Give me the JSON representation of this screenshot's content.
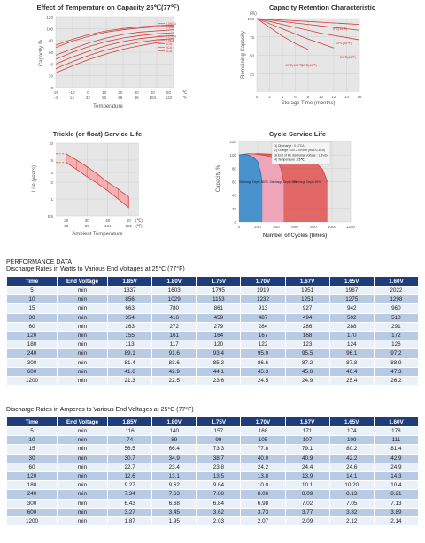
{
  "charts": {
    "temp": {
      "title": "Effect of Temperature on Capacity  25℃(77℉)",
      "ylabel": "Capacity %",
      "xlabel": "Temperature",
      "c_ticks": [
        "-20",
        "-10",
        "0",
        "10",
        "20",
        "30",
        "40",
        "50",
        "℃"
      ],
      "f_ticks": [
        "-4",
        "14",
        "32",
        "50",
        "68",
        "86",
        "104",
        "122",
        "℉"
      ],
      "y_ticks": [
        "120",
        "100",
        "80",
        "60",
        "40",
        "20",
        "0"
      ],
      "legend": [
        "0.05CA",
        "0.1CA",
        "0.25CA",
        "0.6CA",
        "1CA",
        "2CA",
        "3CA"
      ]
    },
    "retention": {
      "title": "Capacity Retention Characteristic",
      "unit": "(%)",
      "ylabel": "Remaining Capacity",
      "xlabel": "Storage Time (months)",
      "y_ticks": [
        "100",
        "75",
        "50",
        "25"
      ],
      "x_ticks": [
        "0",
        "2",
        "4",
        "6",
        "8",
        "10",
        "12",
        "14",
        "16"
      ],
      "labels": [
        "0℃(32℉)",
        "10℃(50℉)",
        "20℃(68℉)",
        "30℃(86℉)",
        "40℃(104℉)"
      ]
    },
    "trickle": {
      "title": "Trickle (or float) Service Life",
      "ylabel": "Life (years)",
      "xlabel": "Ambient Temperature",
      "y_ticks": [
        "10",
        "5",
        "3",
        "2",
        "1",
        "0.5"
      ],
      "c_ticks": [
        "20",
        "30",
        "40",
        "50",
        "(℃)"
      ],
      "f_ticks": [
        "68",
        "86",
        "104",
        "122",
        "(℉)"
      ]
    },
    "cycle": {
      "title": "Cycle Service Life",
      "ylabel": "Capacity %",
      "xlabel": "Number of Cycles (times)",
      "y_ticks": [
        "120",
        "100",
        "80",
        "60",
        "40",
        "20",
        "0"
      ],
      "x_ticks": [
        "0",
        "200",
        "400",
        "600",
        "800",
        "1000",
        "1200"
      ],
      "notes": [
        "(1) Discharge : 0.17CA",
        "(2) Charge : 1V/ 2.4V/cell (max 0.3CA)",
        "(3) End of life discharge voltage : 1.8V/pc",
        "(4) Temperature : 25℃"
      ],
      "curve_labels": [
        "Discharge Depth 100%",
        "Discharge Depth 50%",
        "Discharge Depth 30%"
      ]
    }
  },
  "chart_data": [
    {
      "type": "line",
      "title": "Effect of Temperature on Capacity  25℃(77℉)",
      "xlabel": "Temperature",
      "ylabel": "Capacity %",
      "x": [
        -20,
        -10,
        0,
        10,
        20,
        30,
        40,
        50
      ],
      "xlim": [
        -20,
        50
      ],
      "ylim": [
        0,
        120
      ],
      "series": [
        {
          "name": "0.05CA",
          "values": [
            72,
            82,
            90,
            96,
            100,
            103,
            105,
            106
          ]
        },
        {
          "name": "0.1CA",
          "values": [
            68,
            79,
            87,
            94,
            98,
            101,
            103,
            104
          ]
        },
        {
          "name": "0.25CA",
          "values": [
            55,
            66,
            76,
            84,
            90,
            94,
            96,
            98
          ]
        },
        {
          "name": "0.6CA",
          "values": [
            48,
            60,
            70,
            78,
            84,
            88,
            91,
            93
          ]
        },
        {
          "name": "1CA",
          "values": [
            40,
            52,
            62,
            71,
            78,
            83,
            86,
            88
          ]
        },
        {
          "name": "2CA",
          "values": [
            32,
            44,
            55,
            64,
            71,
            77,
            81,
            83
          ]
        },
        {
          "name": "3CA",
          "values": [
            25,
            37,
            48,
            57,
            65,
            71,
            76,
            78
          ]
        }
      ]
    },
    {
      "type": "line",
      "title": "Capacity Retention Characteristic",
      "xlabel": "Storage Time (months)",
      "ylabel": "Remaining Capacity",
      "x": [
        0,
        2,
        4,
        6,
        8,
        10,
        12,
        14,
        16
      ],
      "xlim": [
        0,
        16
      ],
      "ylim": [
        0,
        100
      ],
      "series": [
        {
          "name": "0℃(32℉)",
          "values": [
            100,
            99,
            98,
            97,
            96,
            95,
            94,
            93,
            92
          ]
        },
        {
          "name": "10℃(50℉)",
          "values": [
            100,
            98,
            96,
            94,
            92,
            90,
            88,
            86,
            84
          ]
        },
        {
          "name": "20℃(68℉)",
          "values": [
            100,
            96,
            92,
            88,
            84,
            80,
            77,
            74,
            71
          ]
        },
        {
          "name": "30℃(86℉)",
          "values": [
            100,
            93,
            86,
            79,
            72,
            66,
            60,
            null,
            null
          ]
        },
        {
          "name": "40℃(104℉)",
          "values": [
            100,
            88,
            76,
            66,
            58,
            null,
            null,
            null,
            null
          ]
        }
      ]
    },
    {
      "type": "area",
      "title": "Trickle (or float) Service Life",
      "xlabel": "Ambient Temperature",
      "ylabel": "Life (years)",
      "x": [
        20,
        25,
        30,
        35,
        40,
        45,
        50
      ],
      "upper": [
        6.5,
        5.0,
        3.8,
        2.8,
        2.0,
        1.5,
        1.1
      ],
      "lower": [
        4.5,
        3.4,
        2.5,
        1.9,
        1.4,
        1.0,
        0.7
      ],
      "xlim": [
        15,
        55
      ],
      "ylim": [
        0.5,
        10
      ]
    },
    {
      "type": "line",
      "title": "Cycle Service Life",
      "xlabel": "Number of Cycles (times)",
      "ylabel": "Capacity %",
      "xlim": [
        0,
        1200
      ],
      "ylim": [
        0,
        120
      ],
      "series": [
        {
          "name": "Discharge Depth 100%",
          "x": [
            0,
            50,
            100,
            150,
            200,
            230,
            250
          ],
          "values": [
            100,
            101,
            100,
            97,
            90,
            75,
            58
          ]
        },
        {
          "name": "Discharge Depth 50%",
          "x": [
            0,
            100,
            200,
            300,
            400,
            450,
            480
          ],
          "values": [
            100,
            102,
            101,
            99,
            93,
            80,
            60
          ]
        },
        {
          "name": "Discharge Depth 30%",
          "x": [
            0,
            200,
            400,
            600,
            800,
            900,
            950
          ],
          "values": [
            100,
            102,
            101,
            99,
            92,
            78,
            60
          ]
        }
      ]
    }
  ],
  "performance": {
    "title": "PERFORMANCE DATA",
    "table1": {
      "caption": "Discharge Rates in Watts to Various End Voltages at 25°C (77°F)",
      "headers": [
        "Time",
        "End Voltage",
        "1.85V",
        "1.80V",
        "1.75V",
        "1.70V",
        "1.67V",
        "1.65V",
        "1.60V"
      ],
      "rows": [
        [
          "5",
          "min",
          "1337",
          "1603",
          "1795",
          "1919",
          "1951",
          "1987",
          "2022"
        ],
        [
          "10",
          "min",
          "856",
          "1029",
          "1153",
          "1232",
          "1251",
          "1275",
          "1298"
        ],
        [
          "15",
          "min",
          "663",
          "780",
          "861",
          "913",
          "927",
          "942",
          "960"
        ],
        [
          "30",
          "min",
          "354",
          "416",
          "459",
          "487",
          "494",
          "502",
          "510"
        ],
        [
          "60",
          "min",
          "263",
          "272",
          "279",
          "284",
          "286",
          "288",
          "291"
        ],
        [
          "120",
          "min",
          "155",
          "161",
          "164",
          "167",
          "168",
          "170",
          "172"
        ],
        [
          "180",
          "min",
          "113",
          "117",
          "120",
          "122",
          "123",
          "124",
          "126"
        ],
        [
          "240",
          "min",
          "89.1",
          "91.6",
          "93.4",
          "95.0",
          "95.5",
          "96.1",
          "97.2"
        ],
        [
          "300",
          "min",
          "81.4",
          "83.6",
          "85.2",
          "86.6",
          "87.2",
          "87.8",
          "88.9"
        ],
        [
          "600",
          "min",
          "41.6",
          "42.9",
          "44.1",
          "45.3",
          "45.8",
          "46.4",
          "47.3"
        ],
        [
          "1200",
          "min",
          "21.3",
          "22.5",
          "23.6",
          "24.5",
          "24.9",
          "25.4",
          "26.2"
        ]
      ]
    },
    "table2": {
      "caption": "Discharge Rates in Amperes to Various End Voltages at 25°C (77°F)",
      "headers": [
        "Time",
        "End Voltage",
        "1.85V",
        "1.80V",
        "1.75V",
        "1.70V",
        "1.67V",
        "1.65V",
        "1.60V"
      ],
      "rows": [
        [
          "5",
          "min",
          "116",
          "140",
          "157",
          "168",
          "171",
          "174",
          "178"
        ],
        [
          "10",
          "min",
          "74",
          "89",
          "99",
          "105",
          "107",
          "109",
          "111"
        ],
        [
          "15",
          "min",
          "56.5",
          "66.4",
          "73.3",
          "77.8",
          "79.1",
          "80.2",
          "81.4"
        ],
        [
          "30",
          "min",
          "30.7",
          "34.9",
          "38.7",
          "40.0",
          "40.9",
          "42.2",
          "42.9"
        ],
        [
          "60",
          "min",
          "22.7",
          "23.4",
          "23.8",
          "24.2",
          "24.4",
          "24.6",
          "24.9"
        ],
        [
          "120",
          "min",
          "12.6",
          "13.1",
          "13.5",
          "13.8",
          "13.9",
          "14.1",
          "14.3"
        ],
        [
          "180",
          "min",
          "9.27",
          "9.62",
          "9.84",
          "10.0",
          "10.1",
          "10.20",
          "10.4"
        ],
        [
          "240",
          "min",
          "7.34",
          "7.63",
          "7.88",
          "8.06",
          "8.09",
          "8.13",
          "8.21"
        ],
        [
          "300",
          "min",
          "6.43",
          "6.68",
          "6.84",
          "6.98",
          "7.02",
          "7.05",
          "7.13"
        ],
        [
          "600",
          "min",
          "3.27",
          "3.45",
          "3.62",
          "3.73",
          "3.77",
          "3.82",
          "3.89"
        ],
        [
          "1200",
          "min",
          "1.87",
          "1.95",
          "2.03",
          "2.07",
          "2.09",
          "2.12",
          "2.14"
        ]
      ]
    }
  },
  "colors": {
    "curve": "#d63a3a",
    "grid": "#cfcfcf",
    "plot_bg": "#e6e6e6",
    "header": "#1f3d7a",
    "row_a": "#eaf0f8",
    "row_b": "#b9cbe4",
    "cycle_blue": "#2a8fd0"
  }
}
